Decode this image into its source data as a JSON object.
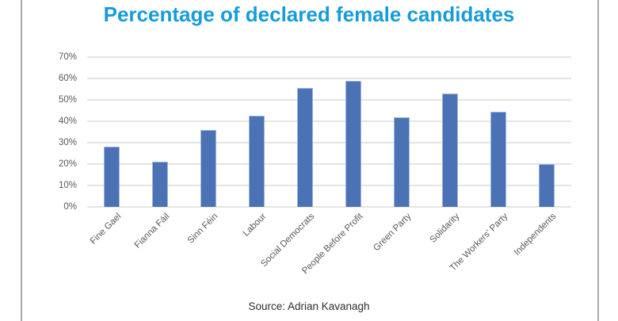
{
  "title": "Percentage of declared female candidates",
  "source": "Source: Adrian Kavanagh",
  "colors": {
    "title_text": "#169cda",
    "bar_fill": "#4a72b4",
    "bar_border": "#9fb4d9",
    "gridline": "#e4e4e4",
    "axis_text": "#595959",
    "frame_border": "#a8a8a8",
    "source_text": "#2e2e2e"
  },
  "chart_data": {
    "type": "bar",
    "title": "Percentage of declared female candidates",
    "categories": [
      "Fine Gael",
      "Fianna Fáil",
      "Sinn Féin",
      "Labour",
      "Social Democrats",
      "People Before Profit",
      "Green Party",
      "Solidarity",
      "The Workers' Party",
      "Independents"
    ],
    "values": [
      28,
      21,
      36,
      42.5,
      55.5,
      59,
      42,
      53,
      44.5,
      20
    ],
    "xlabel": "",
    "ylabel": "",
    "ylim": [
      0,
      70
    ],
    "ytick_step": 10,
    "ytick_suffix": "%",
    "grid": true,
    "legend": false,
    "x_label_rotation_deg": 45,
    "annotations": [
      "Source: Adrian Kavanagh"
    ]
  }
}
